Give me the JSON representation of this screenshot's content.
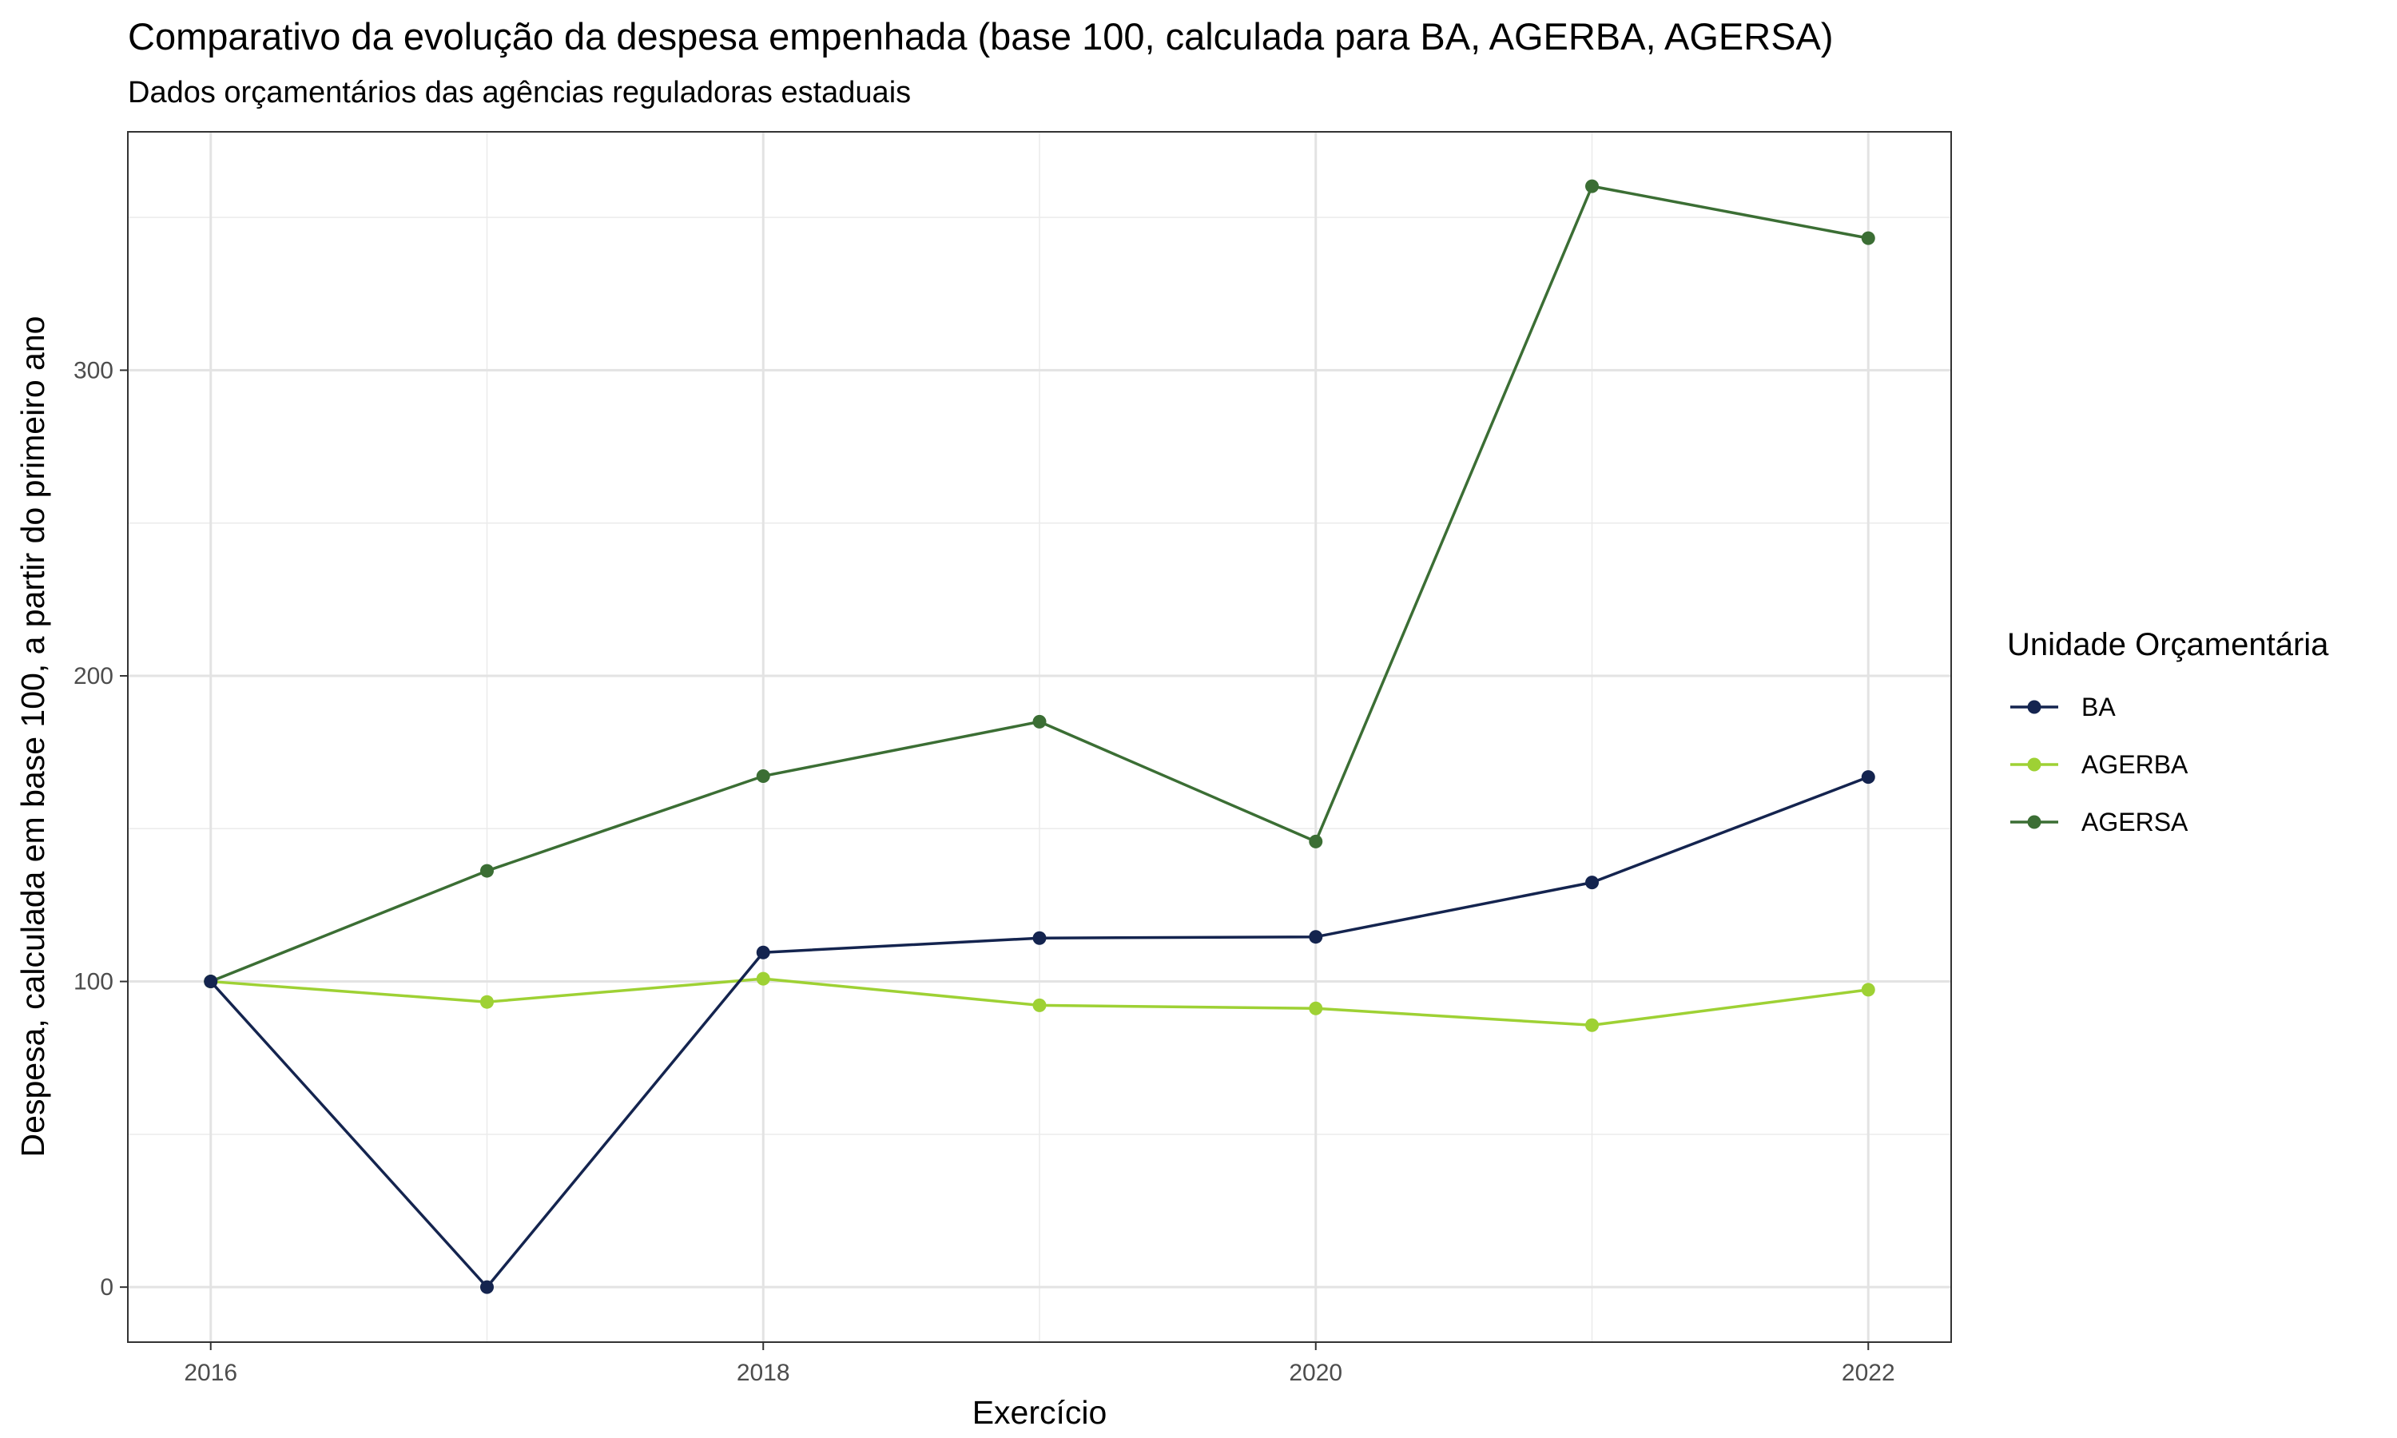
{
  "chart_data": {
    "type": "line",
    "title": "Comparativo da evolução da despesa empenhada (base 100, calculada para BA, AGERBA, AGERSA)",
    "subtitle": "Dados orçamentários das agências reguladoras estaduais",
    "xlabel": "Exercício",
    "ylabel": "Despesa, calculada em base 100, a partir do primeiro ano",
    "x": [
      2016,
      2017,
      2018,
      2019,
      2020,
      2021,
      2022
    ],
    "xticks": [
      2016,
      2018,
      2020,
      2022
    ],
    "yticks": [
      0,
      100,
      200,
      300
    ],
    "xlim": [
      2015.7,
      2022.3
    ],
    "ylim": [
      -18,
      378
    ],
    "grid": true,
    "legend": {
      "title": "Unidade Orçamentária",
      "position": "right"
    },
    "series": [
      {
        "name": "BA",
        "color": "#14244f",
        "values": [
          100,
          0,
          109.5,
          114.2,
          114.6,
          132.4,
          166.9
        ]
      },
      {
        "name": "AGERBA",
        "color": "#9ed134",
        "values": [
          100,
          93.3,
          100.9,
          92.2,
          91.2,
          85.7,
          97.3
        ]
      },
      {
        "name": "AGERSA",
        "color": "#3b6e34",
        "values": [
          100,
          136.2,
          167.2,
          185.0,
          145.8,
          360.2,
          343.2
        ]
      }
    ]
  }
}
